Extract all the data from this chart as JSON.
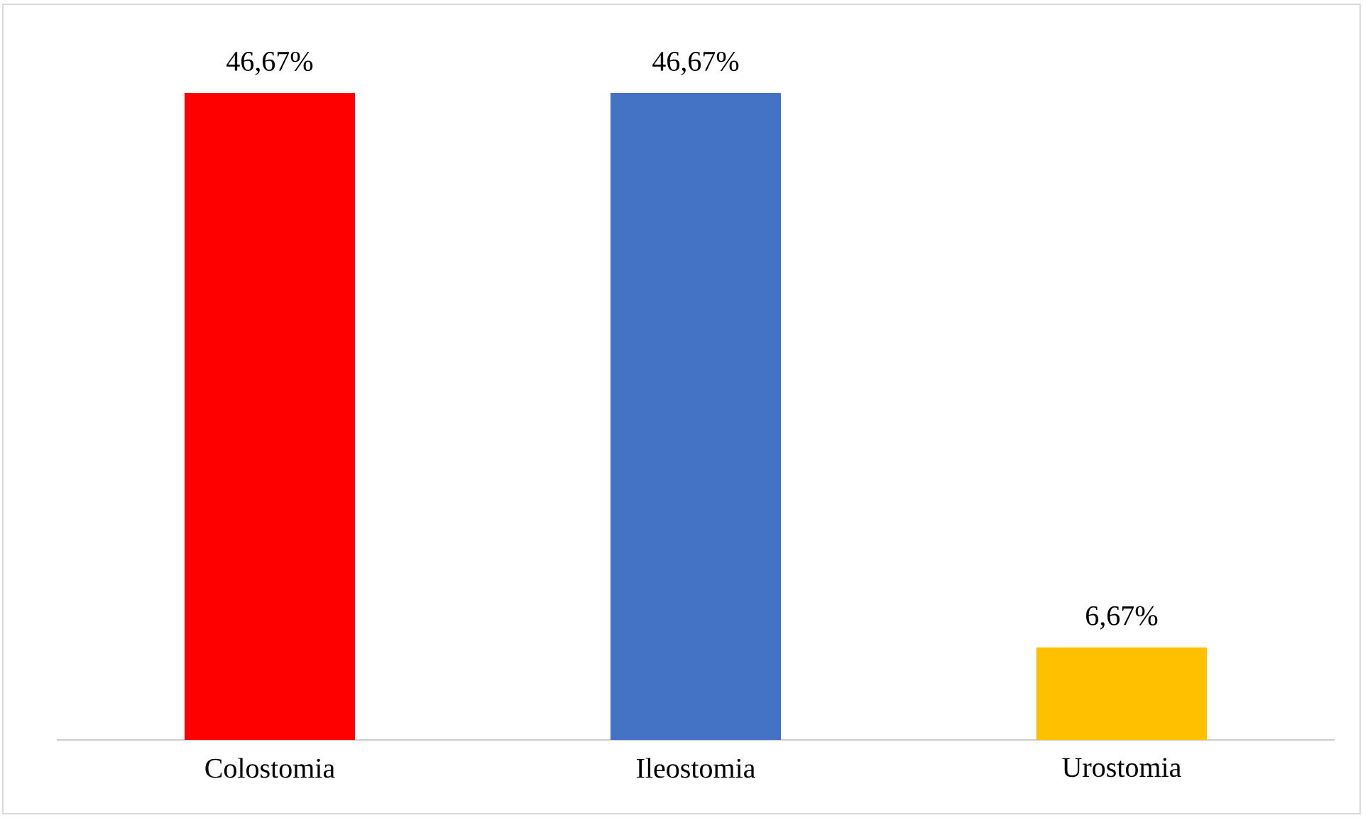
{
  "chart_data": {
    "type": "bar",
    "categories": [
      "Colostomia",
      "Ileostomia",
      "Urostomia"
    ],
    "values": [
      46.67,
      46.67,
      6.67
    ],
    "colors": [
      "#ff0000",
      "#4472c4",
      "#ffc000"
    ],
    "value_labels": [
      "46,67%",
      "46,67%",
      "6,67%"
    ]
  }
}
